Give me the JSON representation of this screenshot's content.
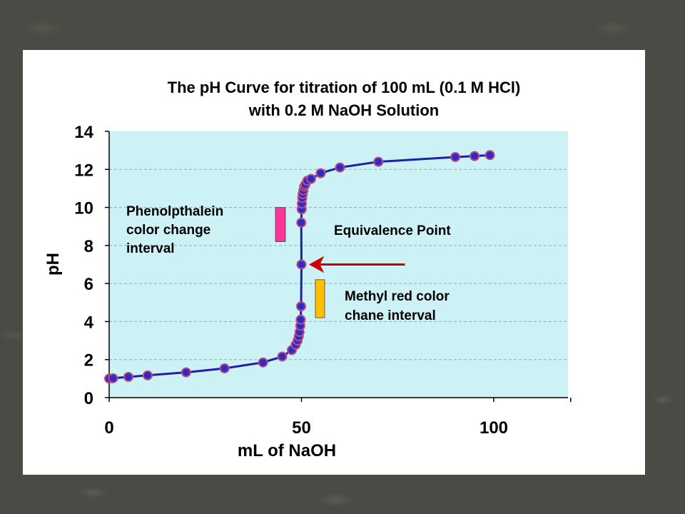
{
  "chart_data": {
    "type": "scatter",
    "title_lines": [
      "The pH Curve for titration of 100 mL (0.1 M HCl)",
      "with 0.2 M NaOH Solution"
    ],
    "xlabel": "mL of NaOH",
    "ylabel": "pH",
    "xlim": [
      0,
      120
    ],
    "ylim": [
      0,
      14
    ],
    "xticks": [
      0,
      50,
      100
    ],
    "yticks": [
      0,
      2,
      4,
      6,
      8,
      10,
      12,
      14
    ],
    "grid": "horizontal dashed",
    "colors": {
      "plot_bg": "#ccf2f6",
      "line": "#1f1fa8",
      "marker_fill": "#2b2bcc",
      "marker_edge": "#c04a78",
      "arrow": "#cc0000",
      "phenolphthalein_bar": "#ff3399",
      "methyl_red_bar": "#ffc000"
    },
    "series": [
      {
        "x": [
          0,
          1,
          5,
          10,
          20,
          30,
          40,
          45,
          47.5,
          48.5,
          49,
          49.3,
          49.5,
          49.7,
          49.8,
          49.9,
          49.95,
          50,
          50.05,
          50.1,
          50.2,
          50.3,
          50.5,
          50.7,
          51,
          51.5,
          52.5,
          55,
          60,
          70,
          90,
          95,
          99
        ],
        "y": [
          1.0,
          1.02,
          1.09,
          1.17,
          1.33,
          1.54,
          1.85,
          2.16,
          2.5,
          2.78,
          3.0,
          3.22,
          3.45,
          3.78,
          4.1,
          4.8,
          9.2,
          7.0,
          9.9,
          10.2,
          10.5,
          10.7,
          10.9,
          11.1,
          11.2,
          11.4,
          11.5,
          11.8,
          12.1,
          12.4,
          12.65,
          12.7,
          12.75
        ]
      }
    ],
    "annotations": {
      "phenolphthalein": [
        "Phenolpthalein",
        "color change",
        "interval"
      ],
      "phenolphthalein_range": [
        8.2,
        10.0
      ],
      "equivalence": "Equivalence Point",
      "equivalence_point": [
        50,
        7
      ],
      "methyl_red": [
        "Methyl red color",
        "chane interval"
      ],
      "methyl_red_range": [
        4.2,
        6.2
      ]
    }
  }
}
